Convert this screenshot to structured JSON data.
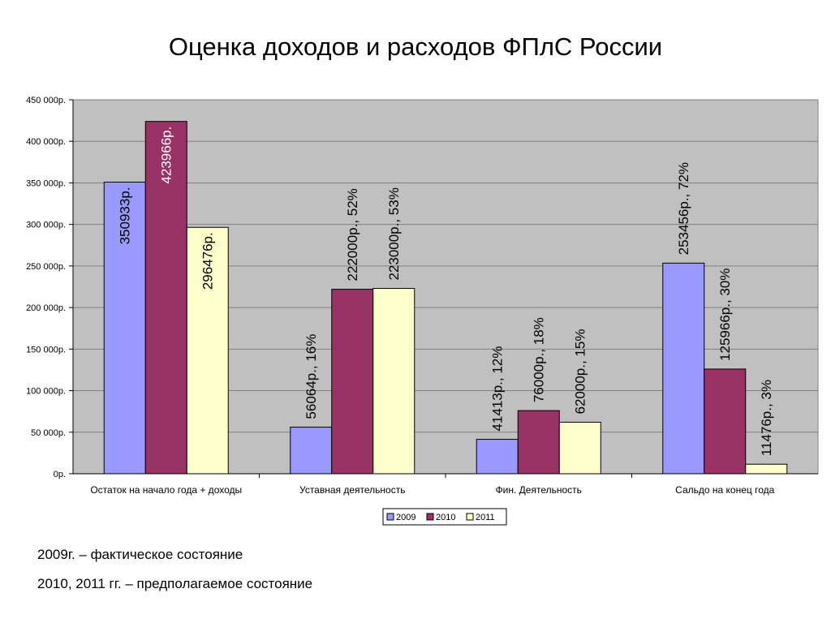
{
  "title": "Оценка доходов и расходов ФПлС России",
  "chart_data": {
    "type": "bar",
    "title": "Оценка доходов и расходов ФПлС России",
    "categories": [
      "Остаток на начало года + доходы",
      "Уставная деятельность",
      "Фин. Деятельность",
      "Сальдо на конец года"
    ],
    "series": [
      {
        "name": "2009",
        "color": "#9999ff",
        "values": [
          350933,
          56064,
          41413,
          253456
        ],
        "labels": [
          "350933р.",
          "56064р., 16%",
          "41413р., 12%",
          "253456р., 72%"
        ]
      },
      {
        "name": "2010",
        "color": "#993366",
        "values": [
          423966,
          222000,
          76000,
          125966
        ],
        "labels": [
          "423966р.",
          "222000р., 52%",
          "76000р., 18%",
          "125966р., 30%"
        ]
      },
      {
        "name": "2011",
        "color": "#ffffcc",
        "values": [
          296476,
          223000,
          62000,
          11476
        ],
        "labels": [
          "296476р.",
          "223000р., 53%",
          "62000р., 15%",
          "11476р., 3%"
        ]
      }
    ],
    "ylim": [
      0,
      450000
    ],
    "yticks": [
      0,
      50000,
      100000,
      150000,
      200000,
      250000,
      300000,
      350000,
      400000,
      450000
    ],
    "ytick_labels": [
      "0р.",
      "50 000р.",
      "100 000р.",
      "150 000р.",
      "200 000р.",
      "250 000р.",
      "300 000р.",
      "350 000р.",
      "400 000р.",
      "450 000р."
    ],
    "grid": true,
    "plot_background": "#c0c0c0",
    "legend_position": "bottom"
  },
  "notes": [
    "2009г. – фактическое состояние",
    "2010, 2011 гг. – предполагаемое состояние"
  ]
}
